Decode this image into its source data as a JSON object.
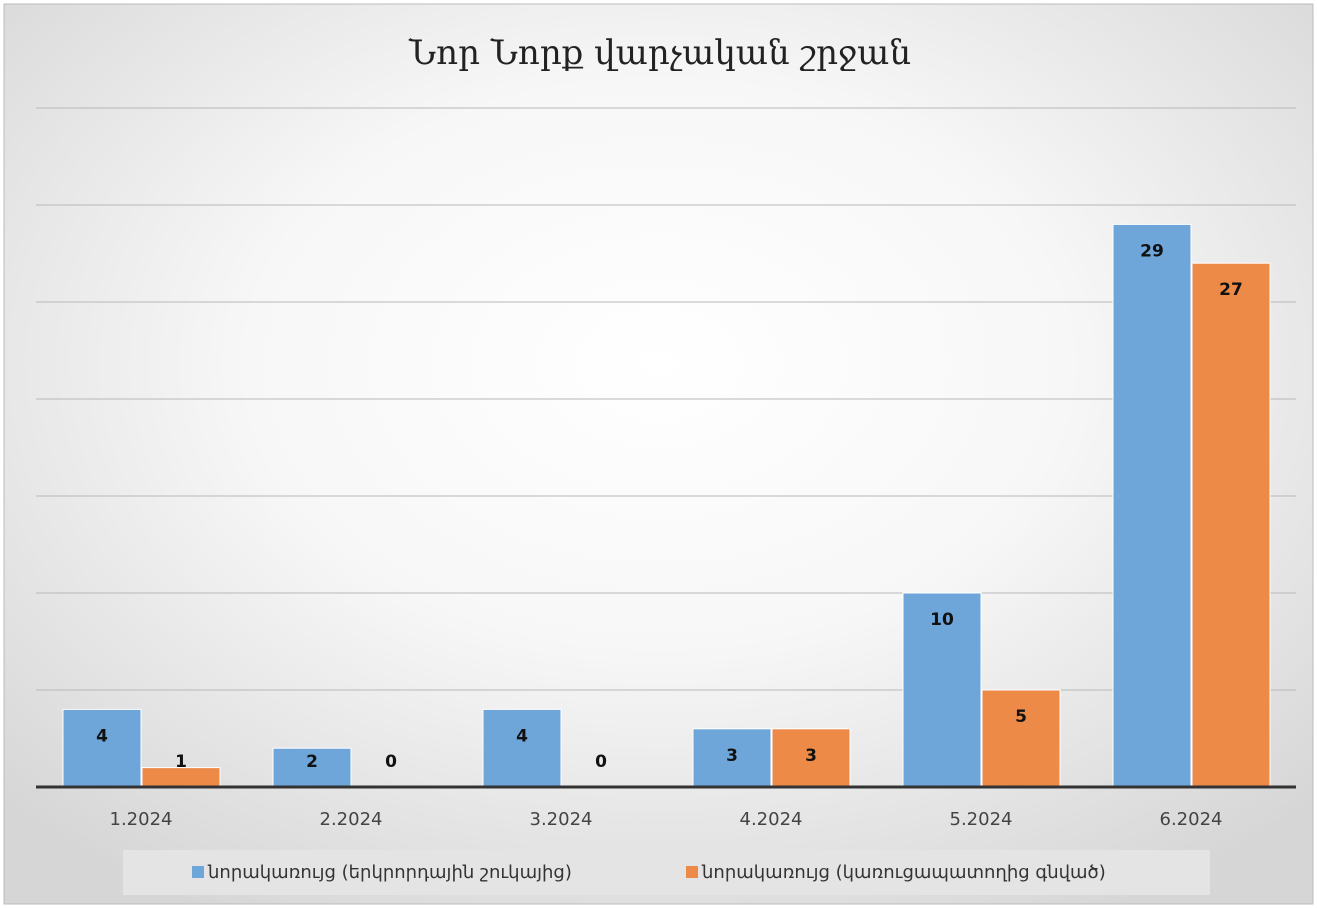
{
  "chart_data": {
    "type": "bar",
    "title": "Նոր Նորք վարչական շրջան",
    "categories": [
      "1.2024",
      "2.2024",
      "3.2024",
      "4.2024",
      "5.2024",
      "6.2024"
    ],
    "series": [
      {
        "name": "նորակառույց (երկրորդային շուկայից)",
        "color": "#6fa6d9",
        "values": [
          4,
          2,
          4,
          3,
          10,
          29
        ]
      },
      {
        "name": "նորակառույց (կառուցապատողից գնված)",
        "color": "#ee8a48",
        "values": [
          1,
          0,
          0,
          3,
          5,
          27
        ]
      }
    ],
    "ylim": [
      0,
      35
    ],
    "yticks": [
      0,
      5,
      10,
      15,
      20,
      25,
      30,
      35
    ],
    "grid": true,
    "legend": "bottom"
  }
}
